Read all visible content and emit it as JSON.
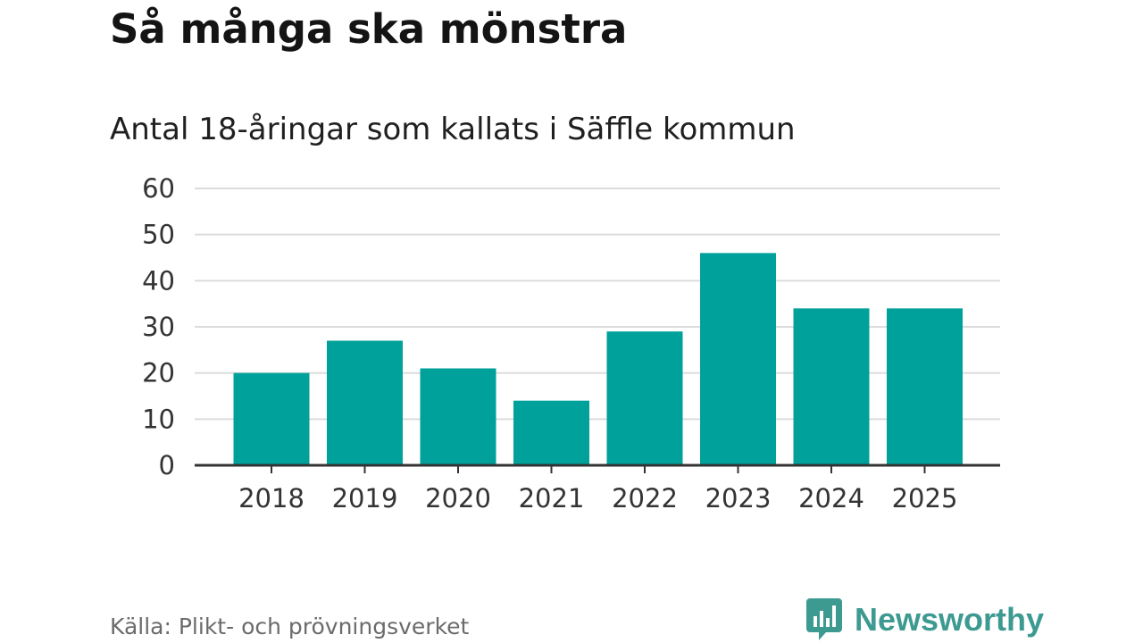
{
  "title": "Så många ska mönstra",
  "subtitle": "Antal 18-åringar som kallats i Säffle kommun",
  "source": "Källa: Plikt- och prövningsverket",
  "brand": {
    "name": "Newsworthy",
    "icon": "newsworthy-chart-bubble-icon",
    "color": "#3d9a91"
  },
  "colors": {
    "bar": "#00a19a",
    "grid": "#dcdcdc",
    "axis": "#333333"
  },
  "chart_data": {
    "type": "bar",
    "title": "Så många ska mönstra",
    "subtitle": "Antal 18-åringar som kallats i Säffle kommun",
    "categories": [
      "2018",
      "2019",
      "2020",
      "2021",
      "2022",
      "2023",
      "2024",
      "2025"
    ],
    "values": [
      20,
      27,
      21,
      14,
      29,
      46,
      34,
      34
    ],
    "xlabel": "",
    "ylabel": "",
    "ylim": [
      0,
      60
    ],
    "yticks": [
      0,
      10,
      20,
      30,
      40,
      50,
      60
    ],
    "grid": true,
    "legend": "none"
  }
}
